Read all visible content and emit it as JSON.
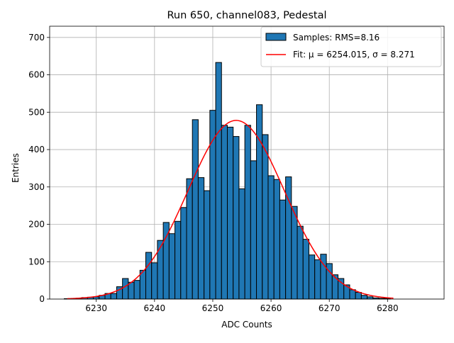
{
  "chart_data": {
    "type": "bar",
    "title": "Run 650, channel083, Pedestal",
    "xlabel": "ADC Counts",
    "ylabel": "Entries",
    "xlim": [
      6222.0,
      6289.7
    ],
    "ylim": [
      0,
      730
    ],
    "xticks": [
      6230,
      6240,
      6250,
      6260,
      6270,
      6280
    ],
    "yticks": [
      0,
      100,
      200,
      300,
      400,
      500,
      600,
      700
    ],
    "grid": true,
    "legend": {
      "placement": "upper right",
      "entries": [
        "Samples: RMS=8.16",
        "Fit: μ = 6254.015, σ = 8.271"
      ]
    },
    "series": [
      {
        "name": "Samples: RMS=8.16",
        "kind": "histogram",
        "color": "#1f77b4",
        "edgecolor": "#000000",
        "x": [
          6225,
          6226,
          6227,
          6228,
          6229,
          6230,
          6231,
          6232,
          6233,
          6234,
          6235,
          6236,
          6237,
          6238,
          6239,
          6240,
          6241,
          6242,
          6243,
          6244,
          6245,
          6246,
          6247,
          6248,
          6249,
          6250,
          6251,
          6252,
          6253,
          6254,
          6255,
          6256,
          6257,
          6258,
          6259,
          6260,
          6261,
          6262,
          6263,
          6264,
          6265,
          6266,
          6267,
          6268,
          6269,
          6270,
          6271,
          6272,
          6273,
          6274,
          6275,
          6276,
          6277,
          6278,
          6279,
          6280
        ],
        "values": [
          1,
          1,
          2,
          4,
          5,
          6,
          10,
          15,
          15,
          33,
          55,
          45,
          50,
          77,
          125,
          97,
          157,
          205,
          175,
          208,
          245,
          322,
          480,
          325,
          290,
          505,
          633,
          465,
          460,
          435,
          295,
          465,
          370,
          520,
          440,
          330,
          320,
          265,
          327,
          248,
          195,
          160,
          118,
          105,
          120,
          95,
          65,
          55,
          38,
          25,
          18,
          10,
          6,
          3,
          2,
          2
        ]
      },
      {
        "name": "Fit: μ = 6254.015, σ = 8.271",
        "kind": "gaussian",
        "color": "#ff0000",
        "mu": 6254.015,
        "sigma": 8.271,
        "amplitude": 478,
        "x_range": [
          6225,
          6281
        ]
      }
    ]
  }
}
